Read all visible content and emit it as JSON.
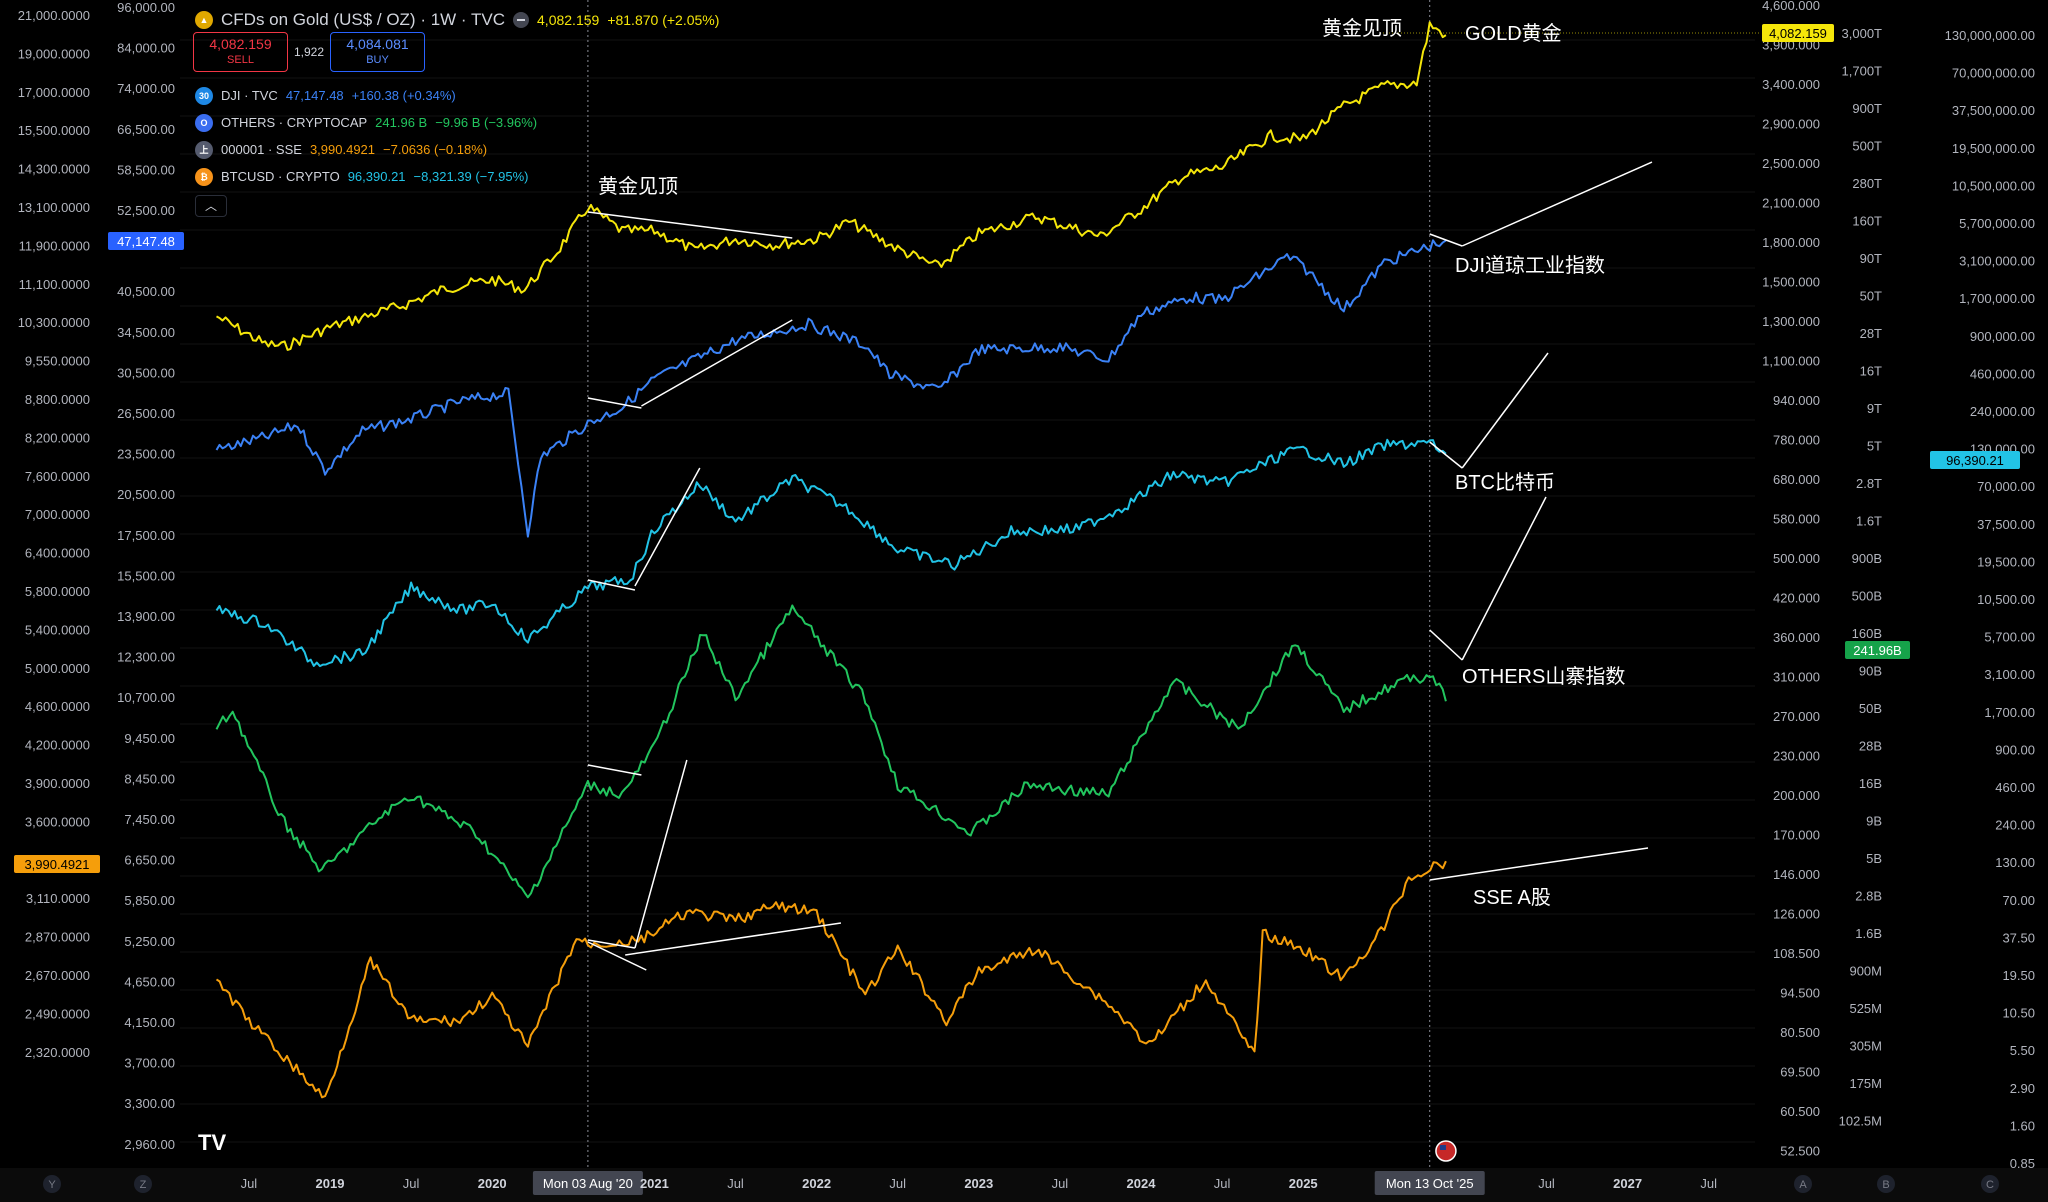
{
  "legend": {
    "main": {
      "title": "CFDs on Gold (US$ / OZ) · 1W · TVC",
      "last": "4,082.159",
      "change": "+81.870 (+2.05%)",
      "color": "#f5e60a"
    },
    "sell": {
      "price": "4,082.159",
      "label": "SELL"
    },
    "buy": {
      "price": "4,084.081",
      "label": "BUY"
    },
    "spread": "1,922",
    "rows": [
      {
        "icon": "30",
        "name": "DJI · TVC",
        "last": "47,147.48",
        "change": "+160.38 (+0.34%)",
        "color": "#3b82f6",
        "icon_bg": "#1e88e5"
      },
      {
        "icon": "O",
        "name": "OTHERS · CRYPTOCAP",
        "last": "241.96 B",
        "change": "−9.96 B (−3.96%)",
        "color": "#22c55e",
        "icon_bg": "#3a6df0"
      },
      {
        "icon": "上",
        "name": "000001 · SSE",
        "last": "3,990.4921",
        "change": "−7.0636 (−0.18%)",
        "color": "#f59e0b",
        "icon_bg": "#555b6e"
      },
      {
        "icon": "₿",
        "name": "BTCUSD · CRYPTO",
        "last": "96,390.21",
        "change": "−8,321.39 (−7.95%)",
        "color": "#22c3e6",
        "icon_bg": "#f7931a"
      }
    ]
  },
  "chart_data": {
    "type": "line",
    "interval": "1W",
    "x_range": [
      "2018-04",
      "2027-10"
    ],
    "x_axis_labels": [
      "Jul",
      "2019",
      "Jul",
      "2020",
      "Mon 03 Aug '20",
      "2021",
      "Jul",
      "2022",
      "Jul",
      "2023",
      "Jul",
      "2024",
      "Jul",
      "2025",
      "Mon 13 Oct '25",
      "Jul",
      "2027",
      "Jul"
    ],
    "crosshair_dates": [
      "Mon 03 Aug '20",
      "Mon 13 Oct '25"
    ],
    "series": [
      {
        "name": "GOLD (XAUUSD)",
        "axis": "left-2",
        "color": "#f5e60a",
        "last_label": "4,082.159",
        "points": [
          [
            2018.3,
            1340
          ],
          [
            2018.6,
            1200
          ],
          [
            2018.72,
            1190
          ],
          [
            2019.0,
            1285
          ],
          [
            2019.45,
            1400
          ],
          [
            2019.72,
            1500
          ],
          [
            2020.0,
            1550
          ],
          [
            2020.2,
            1490
          ],
          [
            2020.4,
            1730
          ],
          [
            2020.59,
            2070
          ],
          [
            2020.8,
            1880
          ],
          [
            2021.0,
            1880
          ],
          [
            2021.25,
            1740
          ],
          [
            2021.5,
            1820
          ],
          [
            2021.75,
            1780
          ],
          [
            2022.0,
            1820
          ],
          [
            2022.2,
            1950
          ],
          [
            2022.5,
            1750
          ],
          [
            2022.75,
            1630
          ],
          [
            2023.0,
            1860
          ],
          [
            2023.35,
            1990
          ],
          [
            2023.75,
            1840
          ],
          [
            2024.0,
            2050
          ],
          [
            2024.25,
            2330
          ],
          [
            2024.5,
            2420
          ],
          [
            2024.8,
            2740
          ],
          [
            2025.0,
            2700
          ],
          [
            2025.25,
            3080
          ],
          [
            2025.5,
            3340
          ],
          [
            2025.7,
            3380
          ],
          [
            2025.78,
            4250
          ],
          [
            2025.88,
            4082.159
          ]
        ]
      },
      {
        "name": "DJI",
        "axis": "left-2",
        "color": "#3b82f6",
        "last_label": "47,147.48",
        "points": [
          [
            2018.3,
            24500
          ],
          [
            2018.6,
            25500
          ],
          [
            2018.8,
            26500
          ],
          [
            2018.97,
            23000
          ],
          [
            2019.2,
            26000
          ],
          [
            2019.5,
            27000
          ],
          [
            2019.8,
            28500
          ],
          [
            2020.1,
            29300
          ],
          [
            2020.22,
            19000
          ],
          [
            2020.3,
            24000
          ],
          [
            2020.59,
            26600
          ],
          [
            2020.8,
            28000
          ],
          [
            2021.0,
            30600
          ],
          [
            2021.5,
            34500
          ],
          [
            2021.95,
            36300
          ],
          [
            2022.3,
            34000
          ],
          [
            2022.45,
            31000
          ],
          [
            2022.75,
            29500
          ],
          [
            2023.0,
            33500
          ],
          [
            2023.5,
            33800
          ],
          [
            2023.8,
            32500
          ],
          [
            2024.0,
            37500
          ],
          [
            2024.3,
            39500
          ],
          [
            2024.5,
            39100
          ],
          [
            2024.9,
            44800
          ],
          [
            2025.0,
            43500
          ],
          [
            2025.25,
            38000
          ],
          [
            2025.5,
            44000
          ],
          [
            2025.8,
            46500
          ],
          [
            2025.88,
            47147.48
          ]
        ]
      },
      {
        "name": "BTCUSD",
        "axis": "right-2",
        "color": "#22c3e6",
        "last_label": "96,390.21",
        "points": [
          [
            2018.3,
            8000
          ],
          [
            2018.6,
            6500
          ],
          [
            2018.9,
            3500
          ],
          [
            2019.2,
            4000
          ],
          [
            2019.5,
            11500
          ],
          [
            2019.8,
            8000
          ],
          [
            2020.0,
            9000
          ],
          [
            2020.22,
            5000
          ],
          [
            2020.59,
            11500
          ],
          [
            2020.85,
            13000
          ],
          [
            2021.0,
            29000
          ],
          [
            2021.28,
            60000
          ],
          [
            2021.5,
            33000
          ],
          [
            2021.85,
            65000
          ],
          [
            2022.2,
            40000
          ],
          [
            2022.5,
            21000
          ],
          [
            2022.85,
            16500
          ],
          [
            2023.2,
            28000
          ],
          [
            2023.6,
            29000
          ],
          [
            2023.9,
            42000
          ],
          [
            2024.2,
            70000
          ],
          [
            2024.5,
            60000
          ],
          [
            2024.9,
            98000
          ],
          [
            2025.0,
            102000
          ],
          [
            2025.25,
            82000
          ],
          [
            2025.5,
            110000
          ],
          [
            2025.78,
            115000
          ],
          [
            2025.88,
            96390.21
          ]
        ]
      },
      {
        "name": "OTHERS",
        "axis": "right-1",
        "color": "#22c55e",
        "last_label": "241.96B",
        "points": [
          [
            2018.3,
            180000000000.0
          ],
          [
            2018.4,
            220000000000.0
          ],
          [
            2018.7,
            70000000000.0
          ],
          [
            2018.95,
            40000000000.0
          ],
          [
            2019.3,
            70000000000.0
          ],
          [
            2019.5,
            90000000000.0
          ],
          [
            2019.9,
            60000000000.0
          ],
          [
            2020.22,
            30000000000.0
          ],
          [
            2020.59,
            100000000000.0
          ],
          [
            2020.8,
            90000000000.0
          ],
          [
            2021.0,
            150000000000.0
          ],
          [
            2021.3,
            500000000000.0
          ],
          [
            2021.5,
            250000000000.0
          ],
          [
            2021.85,
            650000000000.0
          ],
          [
            2022.3,
            250000000000.0
          ],
          [
            2022.5,
            100000000000.0
          ],
          [
            2022.95,
            60000000000.0
          ],
          [
            2023.3,
            100000000000.0
          ],
          [
            2023.8,
            90000000000.0
          ],
          [
            2024.2,
            300000000000.0
          ],
          [
            2024.6,
            180000000000.0
          ],
          [
            2024.95,
            450000000000.0
          ],
          [
            2025.25,
            220000000000.0
          ],
          [
            2025.6,
            300000000000.0
          ],
          [
            2025.8,
            320000000000.0
          ],
          [
            2025.88,
            241960000000.0
          ]
        ]
      },
      {
        "name": "000001 SSE",
        "axis": "left-2",
        "color": "#f59e0b",
        "last_label": "3,990.4921",
        "points": [
          [
            2018.3,
            3150
          ],
          [
            2018.5,
            2900
          ],
          [
            2018.97,
            2480
          ],
          [
            2019.25,
            3270
          ],
          [
            2019.5,
            2900
          ],
          [
            2019.8,
            2900
          ],
          [
            2020.0,
            3050
          ],
          [
            2020.22,
            2750
          ],
          [
            2020.52,
            3420
          ],
          [
            2020.59,
            3380
          ],
          [
            2020.9,
            3400
          ],
          [
            2021.2,
            3600
          ],
          [
            2021.5,
            3550
          ],
          [
            2021.75,
            3650
          ],
          [
            2022.0,
            3600
          ],
          [
            2022.3,
            3050
          ],
          [
            2022.5,
            3350
          ],
          [
            2022.8,
            2900
          ],
          [
            2023.0,
            3200
          ],
          [
            2023.35,
            3350
          ],
          [
            2023.8,
            3000
          ],
          [
            2024.05,
            2760
          ],
          [
            2024.4,
            3150
          ],
          [
            2024.7,
            2700
          ],
          [
            2024.75,
            3450
          ],
          [
            2025.0,
            3350
          ],
          [
            2025.25,
            3150
          ],
          [
            2025.5,
            3500
          ],
          [
            2025.65,
            3850
          ],
          [
            2025.88,
            3990.4921
          ]
        ]
      }
    ],
    "left_axis_1": [
      "21,000.0000",
      "19,000.0000",
      "17,000.0000",
      "15,500.0000",
      "14,300.0000",
      "13,100.0000",
      "11,900.0000",
      "11,100.0000",
      "10,300.0000",
      "9,550.0000",
      "8,800.0000",
      "8,200.0000",
      "7,600.0000",
      "7,000.0000",
      "6,400.0000",
      "5,800.0000",
      "5,400.0000",
      "5,000.0000",
      "4,600.0000",
      "4,200.0000",
      "3,900.0000",
      "3,600.0000",
      "3,350.0000",
      "3,110.0000",
      "2,870.0000",
      "2,670.0000",
      "2,490.0000",
      "2,320.0000"
    ],
    "left_axis_2": [
      "96,000.00",
      "84,000.00",
      "74,000.00",
      "66,500.00",
      "58,500.00",
      "52,500.00",
      "47,147.48",
      "40,500.00",
      "34,500.00",
      "30,500.00",
      "26,500.00",
      "23,500.00",
      "20,500.00",
      "17,500.00",
      "15,500.00",
      "13,900.00",
      "12,300.00",
      "10,700.00",
      "9,450.00",
      "8,450.00",
      "7,450.00",
      "6,650.00",
      "5,850.00",
      "5,250.00",
      "4,650.00",
      "4,150.00",
      "3,700.00",
      "3,300.00",
      "2,960.00"
    ],
    "right_axis_1": [
      "4,600.000",
      "3,900.000",
      "3,400.000",
      "2,900.000",
      "2,500.000",
      "2,100.000",
      "1,800.000",
      "1,500.000",
      "1,300.000",
      "1,100.000",
      "940.000",
      "780.000",
      "680.000",
      "580.000",
      "500.000",
      "420.000",
      "360.000",
      "310.000",
      "270.000",
      "230.000",
      "200.000",
      "170.000",
      "146.000",
      "126.000",
      "108.500",
      "94.500",
      "80.500",
      "69.500",
      "60.500",
      "52.500"
    ],
    "right_axis_2": [
      "3,000T",
      "1,700T",
      "900T",
      "500T",
      "280T",
      "160T",
      "90T",
      "50T",
      "28T",
      "16T",
      "9T",
      "5T",
      "2.8T",
      "1.6T",
      "900B",
      "500B",
      "160B",
      "90B",
      "50B",
      "28B",
      "16B",
      "9B",
      "5B",
      "2.8B",
      "1.6B",
      "900M",
      "525M",
      "305M",
      "175M",
      "102.5M"
    ],
    "right_axis_3": [
      "130,000,000.00",
      "70,000,000.00",
      "37,500,000.00",
      "19,500,000.00",
      "10,500,000.00",
      "5,700,000.00",
      "3,100,000.00",
      "1,700,000.00",
      "900,000.00",
      "460,000.00",
      "240,000.00",
      "130,000.00",
      "70,000.00",
      "37,500.00",
      "19,500.00",
      "10,500.00",
      "5,700.00",
      "3,100.00",
      "1,700.00",
      "900.00",
      "460.00",
      "240.00",
      "130.00",
      "70.00",
      "37.50",
      "19.50",
      "10.50",
      "5.50",
      "2.90",
      "1.60",
      "0.85"
    ],
    "price_tags": [
      {
        "text": "4,082.159",
        "side": "right-1",
        "bg": "#f5e60a",
        "fg": "#000000"
      },
      {
        "text": "47,147.48",
        "side": "left-2",
        "bg": "#2962ff",
        "fg": "#ffffff"
      },
      {
        "text": "96,390.21",
        "side": "right-3",
        "bg": "#22c3e6",
        "fg": "#000000"
      },
      {
        "text": "241.96B",
        "side": "right-2",
        "bg": "#16a34a",
        "fg": "#ffffff"
      },
      {
        "text": "3,990.4921",
        "side": "left-1",
        "bg": "#f59e0b",
        "fg": "#000000"
      }
    ],
    "annotations": [
      {
        "text": "黄金见顶",
        "target": "2020-08 gold peak"
      },
      {
        "text": "黄金见顶",
        "target": "2025-10 gold peak"
      },
      {
        "text": "GOLD黄金"
      },
      {
        "text": "DJI道琼工业指数"
      },
      {
        "text": "BTC比特币"
      },
      {
        "text": "OTHERS山寨指数"
      },
      {
        "text": "SSE A股"
      }
    ],
    "bottom_buttons": [
      "Y",
      "Z",
      "A",
      "B",
      "C"
    ],
    "logo": "TV"
  }
}
